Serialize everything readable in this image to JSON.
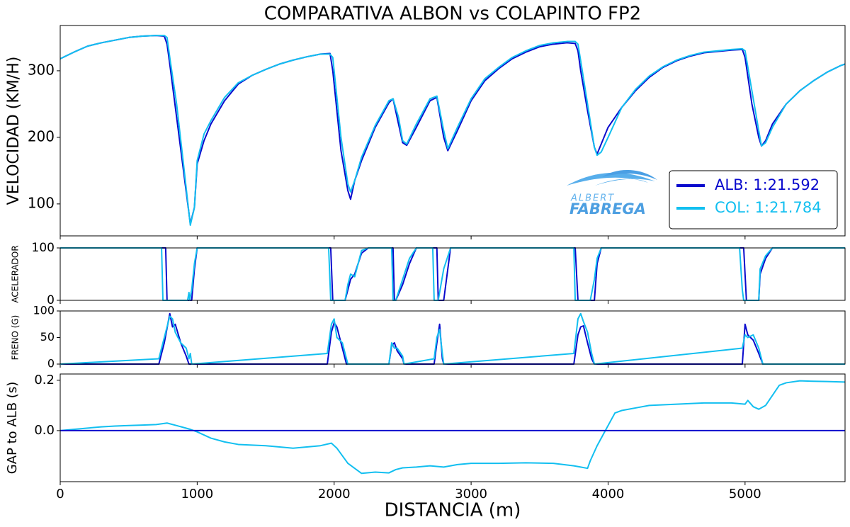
{
  "chart_data": [
    {
      "type": "line",
      "title": "COMPARATIVA ALBON vs COLAPINTO FP2",
      "ylabel": "VELOCIDAD (KM/H)",
      "xlim": [
        0,
        5730
      ],
      "ylim": [
        52,
        368
      ],
      "yticks": [
        100,
        200,
        300
      ],
      "legend": "lower right",
      "watermark_text": [
        "ALBERT",
        "FABREGA"
      ],
      "x": [
        0,
        100,
        200,
        300,
        400,
        500,
        600,
        700,
        760,
        780,
        800,
        850,
        900,
        950,
        980,
        1000,
        1050,
        1100,
        1200,
        1300,
        1400,
        1500,
        1600,
        1700,
        1800,
        1900,
        1970,
        1990,
        2000,
        2050,
        2100,
        2120,
        2150,
        2200,
        2300,
        2400,
        2430,
        2470,
        2500,
        2530,
        2600,
        2700,
        2750,
        2800,
        2830,
        2900,
        3000,
        3100,
        3200,
        3300,
        3400,
        3500,
        3600,
        3700,
        3760,
        3780,
        3800,
        3850,
        3900,
        3920,
        3950,
        4000,
        4100,
        4200,
        4300,
        4400,
        4500,
        4600,
        4700,
        4800,
        4900,
        4980,
        5000,
        5050,
        5100,
        5120,
        5150,
        5200,
        5300,
        5400,
        5500,
        5600,
        5700,
        5730
      ],
      "series": [
        {
          "name": "ALB: 1:21.592",
          "color": "#0a0acd",
          "values": [
            318,
            328,
            337,
            342,
            346,
            350,
            352,
            353,
            352,
            340,
            310,
            230,
            150,
            70,
            95,
            160,
            195,
            220,
            255,
            280,
            293,
            302,
            310,
            316,
            321,
            325,
            326,
            300,
            280,
            180,
            120,
            107,
            135,
            165,
            215,
            252,
            258,
            220,
            192,
            188,
            215,
            255,
            260,
            200,
            180,
            210,
            255,
            285,
            303,
            318,
            328,
            336,
            340,
            342,
            341,
            330,
            300,
            240,
            185,
            175,
            190,
            215,
            245,
            270,
            290,
            305,
            315,
            322,
            327,
            329,
            331,
            332,
            320,
            250,
            200,
            187,
            195,
            220,
            250,
            270,
            285,
            298,
            308,
            310
          ]
        },
        {
          "name": "COL: 1:21.784",
          "color": "#12bff0",
          "values": [
            318,
            328,
            337,
            342,
            346,
            350,
            352,
            353,
            353,
            350,
            320,
            250,
            160,
            68,
            95,
            165,
            205,
            225,
            260,
            282,
            293,
            302,
            310,
            316,
            321,
            325,
            325,
            320,
            300,
            200,
            130,
            118,
            135,
            170,
            218,
            255,
            258,
            230,
            195,
            190,
            220,
            258,
            262,
            210,
            183,
            215,
            258,
            288,
            305,
            320,
            330,
            338,
            342,
            344,
            344,
            340,
            315,
            250,
            185,
            173,
            178,
            200,
            245,
            272,
            292,
            306,
            316,
            323,
            328,
            330,
            332,
            333,
            330,
            270,
            210,
            187,
            192,
            215,
            250,
            270,
            285,
            298,
            308,
            310
          ]
        }
      ]
    },
    {
      "type": "line",
      "ylabel": "ACELERADOR",
      "xlim": [
        0,
        5730
      ],
      "ylim": [
        0,
        100
      ],
      "yticks": [
        0,
        100
      ],
      "x": [
        0,
        740,
        750,
        770,
        780,
        930,
        940,
        945,
        960,
        980,
        1000,
        1960,
        1975,
        1990,
        2000,
        2080,
        2100,
        2120,
        2150,
        2200,
        2250,
        2300,
        2420,
        2430,
        2440,
        2450,
        2500,
        2550,
        2600,
        2720,
        2730,
        2750,
        2760,
        2800,
        2850,
        3750,
        3760,
        3780,
        3790,
        3870,
        3900,
        3920,
        3950,
        4000,
        4960,
        4980,
        4990,
        5010,
        5100,
        5110,
        5150,
        5200,
        5730
      ],
      "series": [
        {
          "name": "ALB: 1:21.592",
          "color": "#0a0acd",
          "values": [
            100,
            100,
            100,
            100,
            0,
            0,
            0,
            0,
            0,
            60,
            100,
            100,
            100,
            0,
            0,
            0,
            20,
            40,
            50,
            90,
            100,
            100,
            100,
            100,
            0,
            0,
            30,
            70,
            100,
            100,
            100,
            100,
            0,
            0,
            100,
            100,
            100,
            0,
            0,
            0,
            0,
            70,
            100,
            100,
            100,
            100,
            100,
            0,
            0,
            50,
            80,
            100,
            100
          ]
        },
        {
          "name": "COL: 1:21.784",
          "color": "#12bff0",
          "values": [
            100,
            100,
            0,
            0,
            0,
            0,
            15,
            0,
            20,
            70,
            100,
            100,
            0,
            0,
            0,
            0,
            30,
            50,
            45,
            95,
            100,
            100,
            100,
            0,
            0,
            0,
            40,
            80,
            100,
            100,
            0,
            0,
            0,
            60,
            100,
            100,
            0,
            0,
            0,
            0,
            40,
            80,
            100,
            100,
            100,
            20,
            0,
            0,
            0,
            60,
            85,
            100,
            100
          ]
        }
      ]
    },
    {
      "type": "line",
      "ylabel": "FRENO (G)",
      "xlim": [
        0,
        5730
      ],
      "ylim": [
        0,
        100
      ],
      "yticks": [
        0,
        50,
        100
      ],
      "x": [
        0,
        720,
        760,
        800,
        820,
        840,
        880,
        920,
        940,
        950,
        960,
        1950,
        1980,
        2000,
        2020,
        2060,
        2090,
        2100,
        2400,
        2420,
        2440,
        2460,
        2500,
        2510,
        2730,
        2750,
        2770,
        2790,
        2800,
        3750,
        3780,
        3800,
        3820,
        3850,
        3880,
        3900,
        4980,
        5000,
        5020,
        5060,
        5100,
        5130,
        5730
      ],
      "series": [
        {
          "name": "ALB: 1:21.592",
          "color": "#0a0acd",
          "values": [
            0,
            0,
            40,
            95,
            70,
            75,
            40,
            15,
            0,
            0,
            0,
            0,
            60,
            78,
            70,
            30,
            0,
            0,
            0,
            35,
            40,
            25,
            10,
            0,
            0,
            40,
            75,
            10,
            0,
            0,
            55,
            70,
            72,
            40,
            10,
            0,
            0,
            75,
            55,
            45,
            20,
            0,
            0
          ]
        },
        {
          "name": "COL: 1:21.784",
          "color": "#12bff0",
          "values": [
            0,
            10,
            50,
            90,
            85,
            60,
            40,
            30,
            10,
            20,
            0,
            20,
            75,
            85,
            50,
            40,
            10,
            0,
            0,
            40,
            30,
            30,
            15,
            0,
            10,
            50,
            65,
            20,
            0,
            20,
            85,
            95,
            80,
            60,
            20,
            0,
            30,
            55,
            50,
            55,
            30,
            0,
            0
          ]
        }
      ]
    },
    {
      "type": "line",
      "ylabel": "GAP to ALB (s)",
      "xlabel": "DISTANCIA (m)",
      "xlim": [
        0,
        5730
      ],
      "ylim": [
        -0.203,
        0.225
      ],
      "yticks": [
        {
          "value": 0,
          "label": "0.0"
        },
        0.2
      ],
      "xticks": [
        0,
        1000,
        2000,
        3000,
        4000,
        5000
      ],
      "x": [
        0,
        100,
        200,
        300,
        400,
        500,
        600,
        700,
        780,
        850,
        950,
        1000,
        1100,
        1200,
        1300,
        1500,
        1700,
        1900,
        1980,
        2020,
        2100,
        2150,
        2200,
        2300,
        2400,
        2450,
        2500,
        2600,
        2700,
        2800,
        2900,
        3000,
        3200,
        3400,
        3600,
        3750,
        3800,
        3850,
        3870,
        3920,
        3980,
        4050,
        4100,
        4200,
        4300,
        4500,
        4700,
        4900,
        5000,
        5020,
        5060,
        5100,
        5150,
        5200,
        5250,
        5300,
        5400,
        5500,
        5600,
        5730
      ],
      "series": [
        {
          "name": "COL: 1:21.784",
          "color": "#12bff0",
          "values": [
            0,
            0.005,
            0.01,
            0.015,
            0.018,
            0.02,
            0.022,
            0.024,
            0.03,
            0.02,
            0.005,
            -0.005,
            -0.03,
            -0.045,
            -0.055,
            -0.06,
            -0.07,
            -0.06,
            -0.05,
            -0.07,
            -0.13,
            -0.15,
            -0.17,
            -0.165,
            -0.168,
            -0.155,
            -0.148,
            -0.145,
            -0.14,
            -0.145,
            -0.135,
            -0.13,
            -0.13,
            -0.128,
            -0.13,
            -0.14,
            -0.145,
            -0.15,
            -0.12,
            -0.06,
            0,
            0.07,
            0.08,
            0.09,
            0.1,
            0.105,
            0.11,
            0.11,
            0.105,
            0.12,
            0.095,
            0.085,
            0.1,
            0.14,
            0.18,
            0.19,
            0.198,
            0.196,
            0.195,
            0.193
          ]
        },
        {
          "name": "ALB: 1:21.592",
          "color": "#0a0acd",
          "x": [
            0,
            5730
          ],
          "values": [
            0,
            0
          ]
        }
      ]
    }
  ]
}
